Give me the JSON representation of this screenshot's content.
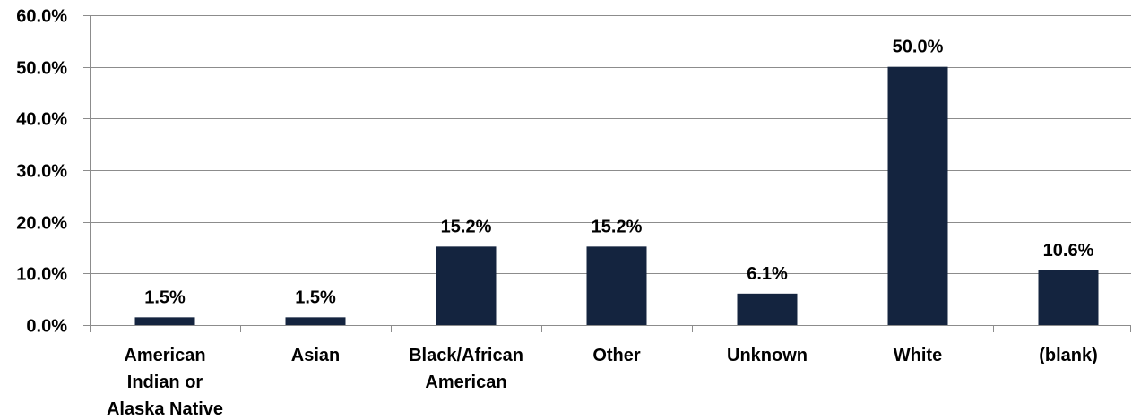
{
  "chart_data": {
    "type": "bar",
    "categories": [
      [
        "American",
        "Indian or",
        "Alaska Native"
      ],
      [
        "Asian"
      ],
      [
        "Black/African",
        "American"
      ],
      [
        "Other"
      ],
      [
        "Unknown"
      ],
      [
        "White"
      ],
      [
        "(blank)"
      ]
    ],
    "series": [
      {
        "values": [
          1.5,
          1.5,
          15.2,
          15.2,
          6.1,
          50.0,
          10.6
        ],
        "labels": [
          "1.5%",
          "1.5%",
          "15.2%",
          "15.2%",
          "6.1%",
          "50.0%",
          "10.6%"
        ],
        "color": "#14243f"
      }
    ],
    "ylim": [
      0,
      60
    ],
    "yticks": [
      0,
      10,
      20,
      30,
      40,
      50,
      60
    ],
    "ytick_labels": [
      "0.0%",
      "10.0%",
      "20.0%",
      "30.0%",
      "40.0%",
      "50.0%",
      "60.0%"
    ],
    "grid": true,
    "gridline_color": "#8c8c8c",
    "title": "",
    "xlabel": "",
    "ylabel": ""
  }
}
